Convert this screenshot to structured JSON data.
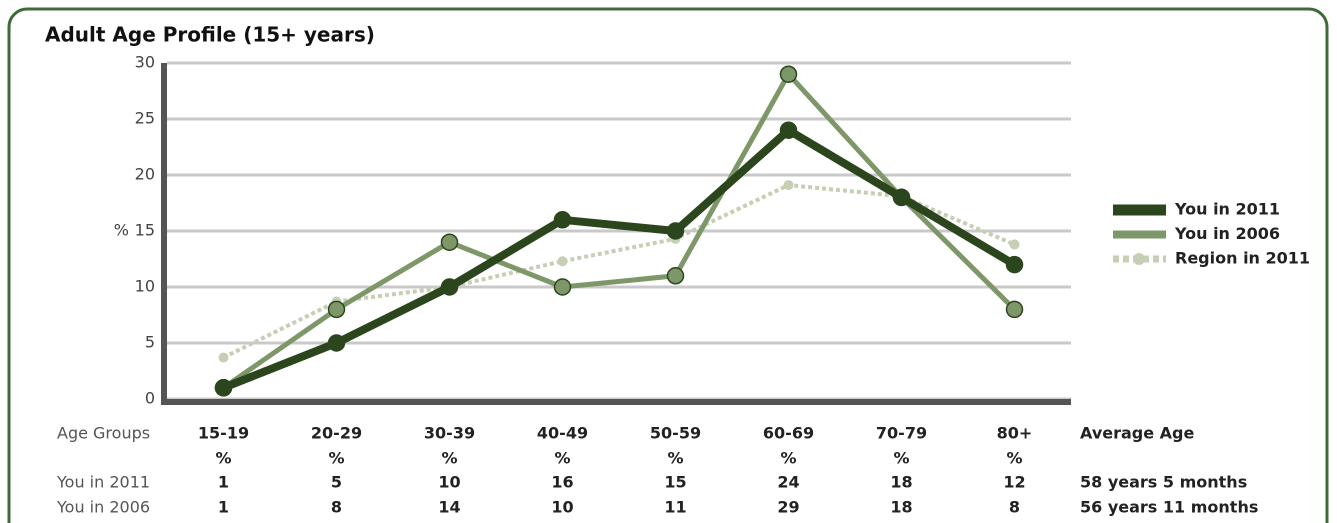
{
  "chart_data": {
    "type": "line",
    "title": "Adult Age Profile (15+ years)",
    "categories": [
      "15-19",
      "20-29",
      "30-39",
      "40-49",
      "50-59",
      "60-69",
      "70-79",
      "80+"
    ],
    "category_unit": "%",
    "y_label": "%",
    "ylim": [
      0,
      30
    ],
    "yticks": [
      0,
      5,
      10,
      15,
      20,
      25,
      30
    ],
    "grid": true,
    "series": [
      {
        "name": "You in 2011",
        "color": "#2b461d",
        "width": 8,
        "dashed": false,
        "values": [
          1,
          5,
          10,
          16,
          15,
          24,
          18,
          12
        ],
        "average_age": "58 years 5 months"
      },
      {
        "name": "You in 2006",
        "color": "#7e9769",
        "width": 5,
        "dashed": false,
        "values": [
          1,
          8,
          14,
          10,
          11,
          29,
          18,
          8
        ],
        "average_age": "56 years 11 months"
      },
      {
        "name": "Region in 2011",
        "color": "#c6cfb5",
        "width": 4,
        "dashed": true,
        "values": [
          3.7,
          8.7,
          10,
          12.3,
          14.3,
          19.1,
          18.1,
          13.8
        ]
      }
    ],
    "table_header": "Age Groups",
    "average_header": "Average Age"
  }
}
